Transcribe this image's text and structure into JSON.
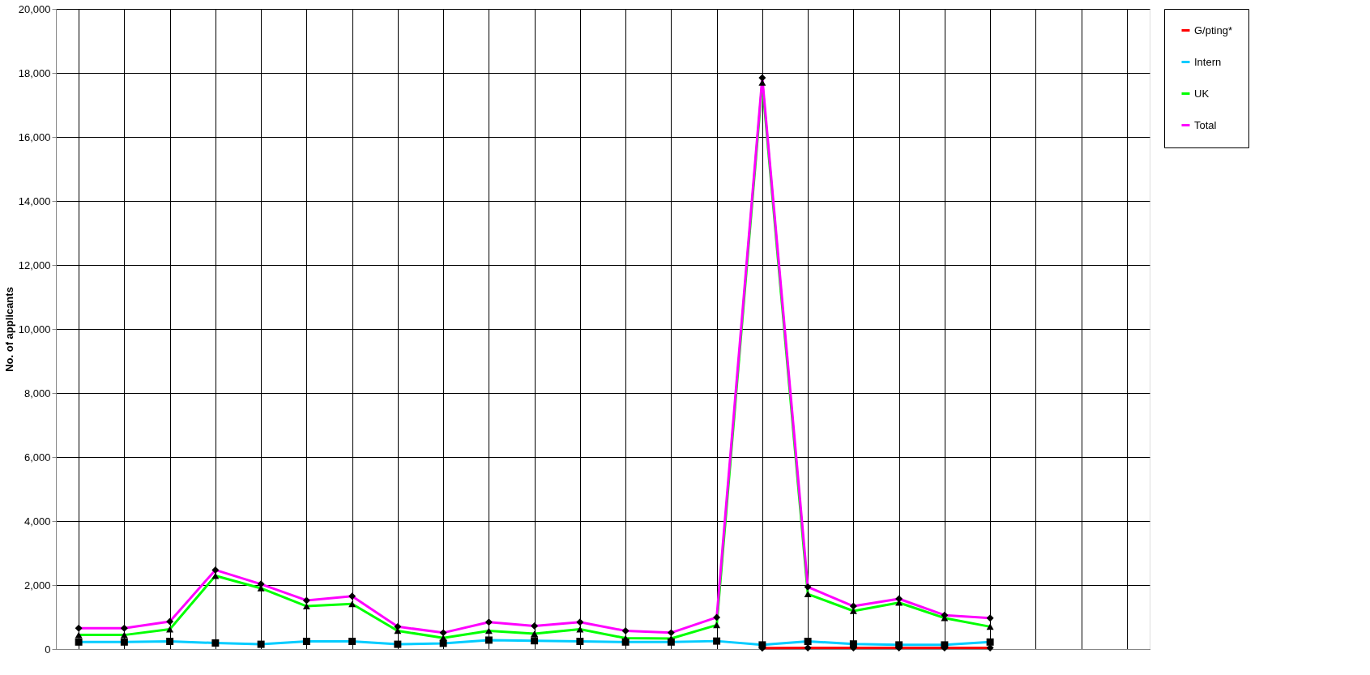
{
  "chart_data": {
    "type": "line",
    "ylabel": "No. of applicants",
    "categories": [
      null,
      null,
      null,
      null,
      null,
      null,
      null,
      null,
      null,
      null,
      null,
      null,
      null,
      null,
      null,
      null,
      null,
      null,
      null,
      null,
      null,
      null,
      null,
      null
    ],
    "series": [
      {
        "name": "G/pting*",
        "color": "#ff0000",
        "marker": "diamond",
        "values": [
          null,
          null,
          null,
          null,
          null,
          null,
          null,
          null,
          null,
          null,
          null,
          null,
          null,
          null,
          null,
          30,
          40,
          40,
          40,
          40,
          40,
          null,
          null,
          null
        ]
      },
      {
        "name": "Intern",
        "color": "#00ccff",
        "marker": "square",
        "values": [
          220,
          220,
          240,
          190,
          150,
          240,
          240,
          150,
          180,
          280,
          260,
          240,
          220,
          220,
          250,
          130,
          240,
          160,
          130,
          130,
          220,
          null,
          null,
          null
        ]
      },
      {
        "name": "UK",
        "color": "#00ff00",
        "marker": "triangle",
        "values": [
          440,
          440,
          620,
          2290,
          1900,
          1340,
          1410,
          570,
          350,
          570,
          480,
          620,
          340,
          330,
          750,
          17700,
          1720,
          1190,
          1450,
          970,
          700,
          null,
          null,
          null
        ]
      },
      {
        "name": "Total",
        "color": "#ff00ff",
        "marker": "diamond",
        "values": [
          650,
          650,
          860,
          2470,
          2030,
          1520,
          1650,
          700,
          510,
          840,
          720,
          840,
          570,
          510,
          990,
          17850,
          1940,
          1340,
          1570,
          1060,
          970,
          null,
          null,
          null
        ]
      }
    ],
    "ylim": [
      0,
      20000
    ],
    "yticks": [
      {
        "value": 0,
        "label": "0"
      },
      {
        "value": 2000,
        "label": "2,000"
      },
      {
        "value": 4000,
        "label": "4,000"
      },
      {
        "value": 6000,
        "label": "6,000"
      },
      {
        "value": 8000,
        "label": "8,000"
      },
      {
        "value": 10000,
        "label": "10,000"
      },
      {
        "value": 12000,
        "label": "12,000"
      },
      {
        "value": 14000,
        "label": "14,000"
      },
      {
        "value": 16000,
        "label": "16,000"
      },
      {
        "value": 18000,
        "label": "18,000"
      },
      {
        "value": 20000,
        "label": "20,000"
      }
    ],
    "grid": true,
    "legend": "right",
    "tick_labels": "y",
    "line_style": "solid"
  }
}
